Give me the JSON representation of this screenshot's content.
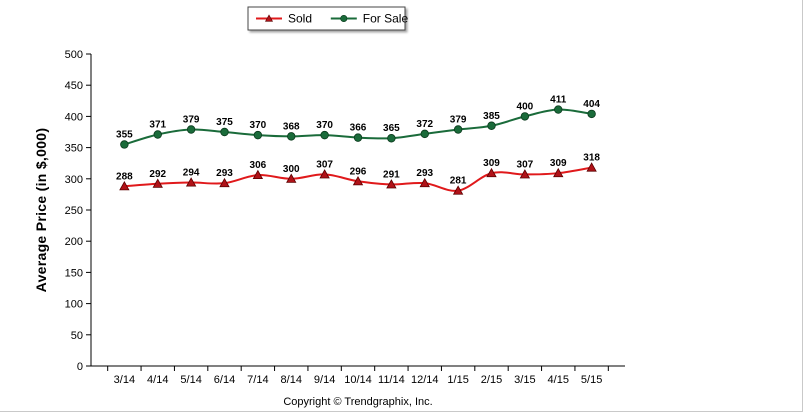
{
  "chart_data": {
    "type": "line",
    "categories": [
      "3/14",
      "4/14",
      "5/14",
      "6/14",
      "7/14",
      "8/14",
      "9/14",
      "10/14",
      "11/14",
      "12/14",
      "1/15",
      "2/15",
      "3/15",
      "4/15",
      "5/15"
    ],
    "series": [
      {
        "name": "Sold",
        "color": "#e0191b",
        "marker": "triangle",
        "values": [
          288,
          292,
          294,
          293,
          306,
          300,
          307,
          296,
          291,
          293,
          281,
          309,
          307,
          309,
          318
        ]
      },
      {
        "name": "For Sale",
        "color": "#1a6b3a",
        "marker": "circle",
        "values": [
          355,
          371,
          379,
          375,
          370,
          368,
          370,
          366,
          365,
          372,
          379,
          385,
          400,
          411,
          404
        ]
      }
    ],
    "title": "",
    "xlabel": "",
    "ylabel": "Average Price (in $,000)",
    "ylim": [
      0,
      500
    ],
    "yticks": [
      0,
      50,
      100,
      150,
      200,
      250,
      300,
      350,
      400,
      450,
      500
    ],
    "grid": false,
    "legend": "top-center",
    "footer": "Copyright © Trendgraphix, Inc."
  }
}
